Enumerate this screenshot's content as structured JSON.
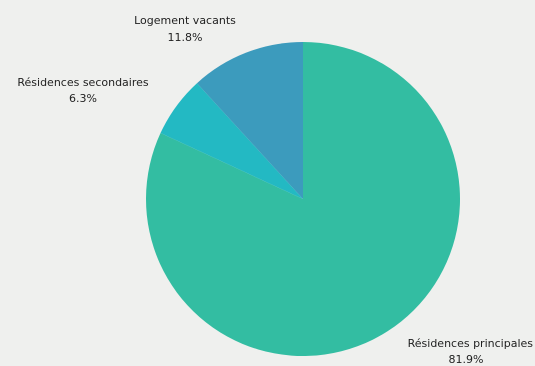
{
  "chart_data": {
    "type": "pie",
    "title": "",
    "start_angle_deg": 0,
    "direction": "clockwise",
    "slices": [
      {
        "label": "Résidences principales",
        "value": 81.9,
        "value_label": "81.9%",
        "color": "#33bda2"
      },
      {
        "label": "Résidences secondaires",
        "value": 6.3,
        "value_label": "6.3%",
        "color": "#23b9c3"
      },
      {
        "label": "Logement vacants",
        "value": 11.8,
        "value_label": "11.8%",
        "color": "#3c9bbd"
      }
    ]
  }
}
